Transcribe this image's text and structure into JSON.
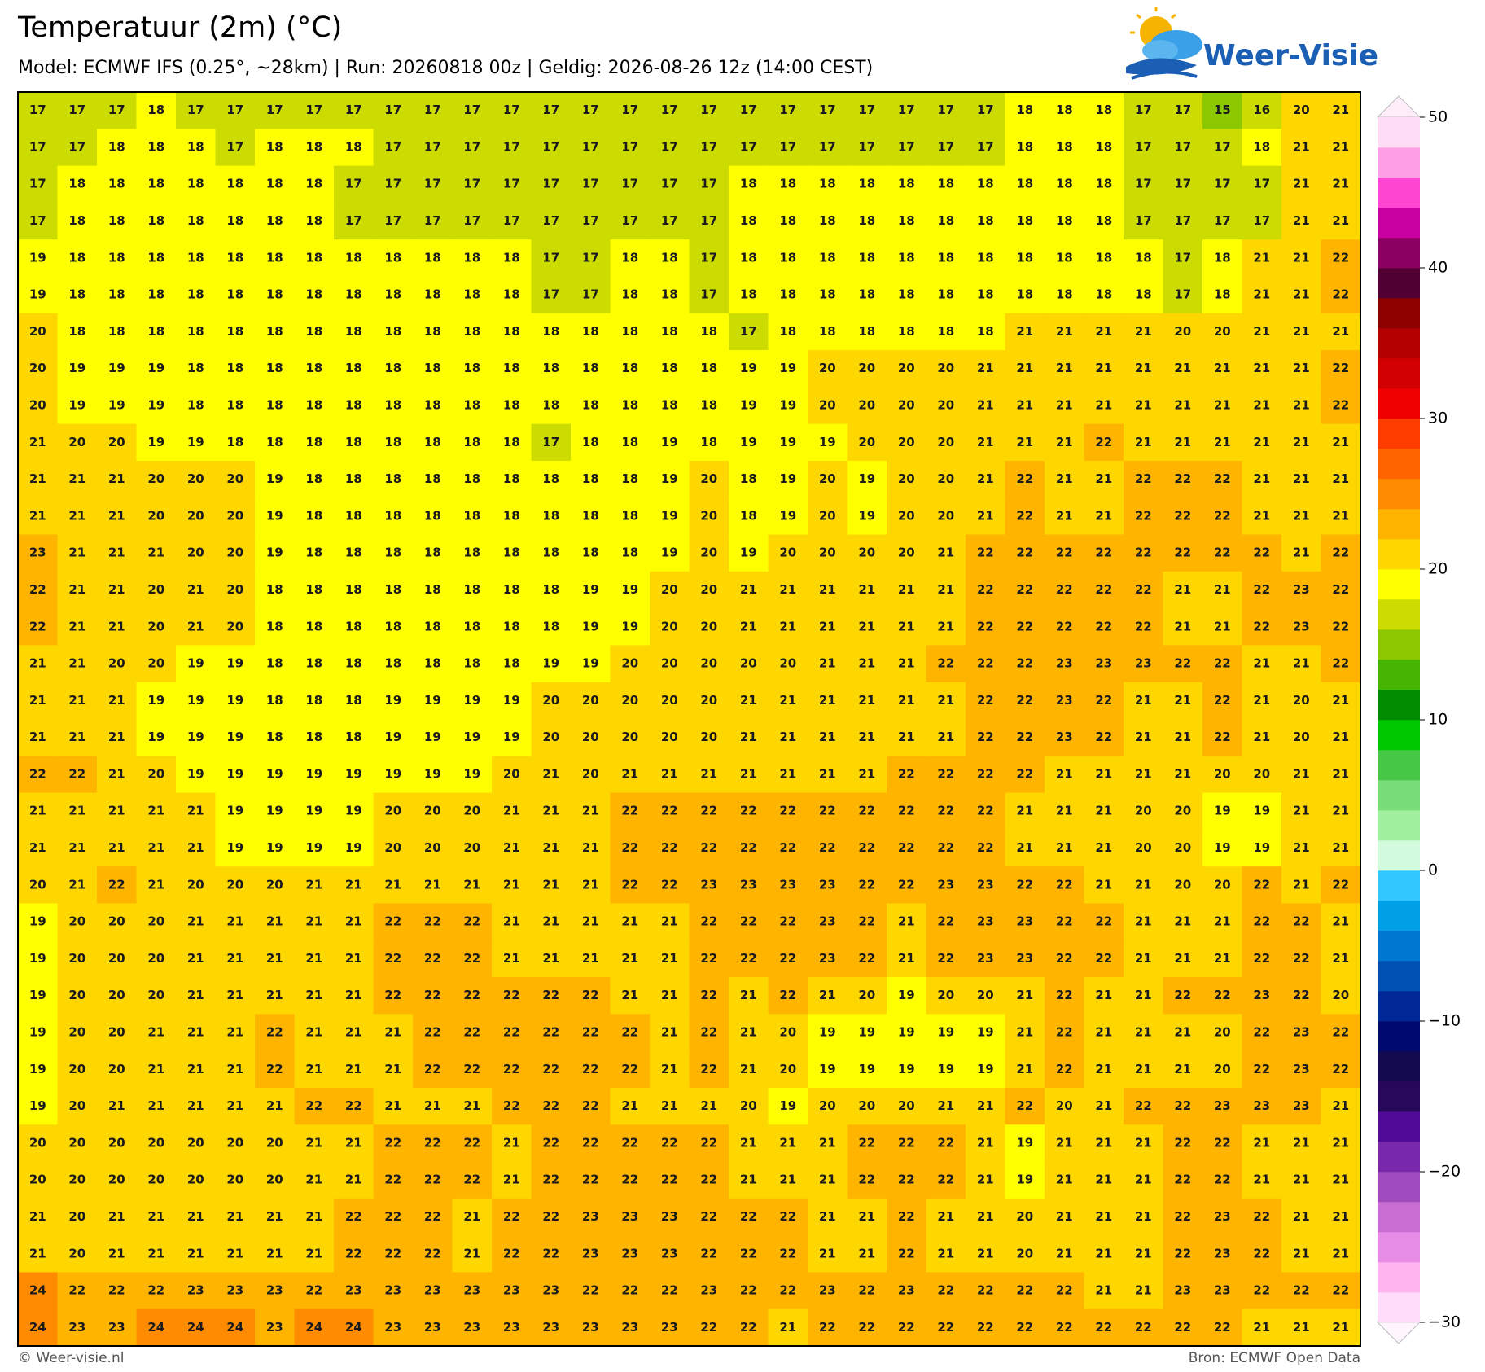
{
  "header": {
    "title": "Temperatuur (2m) (°C)",
    "subtitle": "Model: ECMWF IFS (0.25°, ~28km)  |  Run: 20260818 00z  |  Geldig: 2026-08-26 12z (14:00 CEST)"
  },
  "logo": {
    "text": "Weer-Visie"
  },
  "map": {
    "grid": [
      [
        17,
        17,
        17,
        18,
        17,
        17,
        17,
        17,
        17,
        17,
        17,
        17,
        17,
        17,
        17,
        17,
        17,
        17,
        17,
        17,
        17,
        17,
        17,
        17,
        17,
        18,
        18,
        18,
        17,
        17,
        15,
        16,
        20,
        21
      ],
      [
        17,
        17,
        18,
        18,
        18,
        17,
        18,
        18,
        18,
        17,
        17,
        17,
        17,
        17,
        17,
        17,
        17,
        17,
        17,
        17,
        17,
        17,
        17,
        17,
        17,
        18,
        18,
        18,
        17,
        17,
        17,
        18,
        21,
        21
      ],
      [
        17,
        18,
        18,
        18,
        18,
        18,
        18,
        18,
        17,
        17,
        17,
        17,
        17,
        17,
        17,
        17,
        17,
        17,
        18,
        18,
        18,
        18,
        18,
        18,
        18,
        18,
        18,
        18,
        17,
        17,
        17,
        17,
        21,
        21
      ],
      [
        17,
        18,
        18,
        18,
        18,
        18,
        18,
        18,
        17,
        17,
        17,
        17,
        17,
        17,
        17,
        17,
        17,
        17,
        18,
        18,
        18,
        18,
        18,
        18,
        18,
        18,
        18,
        18,
        17,
        17,
        17,
        17,
        21,
        21
      ],
      [
        19,
        18,
        18,
        18,
        18,
        18,
        18,
        18,
        18,
        18,
        18,
        18,
        18,
        17,
        17,
        18,
        18,
        17,
        18,
        18,
        18,
        18,
        18,
        18,
        18,
        18,
        18,
        18,
        18,
        17,
        18,
        21,
        21,
        22
      ],
      [
        19,
        18,
        18,
        18,
        18,
        18,
        18,
        18,
        18,
        18,
        18,
        18,
        18,
        17,
        17,
        18,
        18,
        17,
        18,
        18,
        18,
        18,
        18,
        18,
        18,
        18,
        18,
        18,
        18,
        17,
        18,
        21,
        21,
        22
      ],
      [
        20,
        18,
        18,
        18,
        18,
        18,
        18,
        18,
        18,
        18,
        18,
        18,
        18,
        18,
        18,
        18,
        18,
        18,
        17,
        18,
        18,
        18,
        18,
        18,
        18,
        21,
        21,
        21,
        21,
        20,
        20,
        21,
        21,
        21
      ],
      [
        20,
        19,
        19,
        19,
        18,
        18,
        18,
        18,
        18,
        18,
        18,
        18,
        18,
        18,
        18,
        18,
        18,
        18,
        19,
        19,
        20,
        20,
        20,
        20,
        21,
        21,
        21,
        21,
        21,
        21,
        21,
        21,
        21,
        22
      ],
      [
        20,
        19,
        19,
        19,
        18,
        18,
        18,
        18,
        18,
        18,
        18,
        18,
        18,
        18,
        18,
        18,
        18,
        18,
        19,
        19,
        20,
        20,
        20,
        20,
        21,
        21,
        21,
        21,
        21,
        21,
        21,
        21,
        21,
        22
      ],
      [
        21,
        20,
        20,
        19,
        19,
        18,
        18,
        18,
        18,
        18,
        18,
        18,
        18,
        17,
        18,
        18,
        19,
        18,
        19,
        19,
        19,
        20,
        20,
        20,
        21,
        21,
        21,
        22,
        21,
        21,
        21,
        21,
        21,
        21
      ],
      [
        21,
        21,
        21,
        20,
        20,
        20,
        19,
        18,
        18,
        18,
        18,
        18,
        18,
        18,
        18,
        18,
        19,
        20,
        18,
        19,
        20,
        19,
        20,
        20,
        21,
        22,
        21,
        21,
        22,
        22,
        22,
        21,
        21,
        21
      ],
      [
        21,
        21,
        21,
        20,
        20,
        20,
        19,
        18,
        18,
        18,
        18,
        18,
        18,
        18,
        18,
        18,
        19,
        20,
        18,
        19,
        20,
        19,
        20,
        20,
        21,
        22,
        21,
        21,
        22,
        22,
        22,
        21,
        21,
        21
      ],
      [
        23,
        21,
        21,
        21,
        20,
        20,
        19,
        18,
        18,
        18,
        18,
        18,
        18,
        18,
        18,
        18,
        19,
        20,
        19,
        20,
        20,
        20,
        20,
        21,
        22,
        22,
        22,
        22,
        22,
        22,
        22,
        22,
        21,
        22
      ],
      [
        22,
        21,
        21,
        20,
        21,
        20,
        18,
        18,
        18,
        18,
        18,
        18,
        18,
        18,
        19,
        19,
        20,
        20,
        21,
        21,
        21,
        21,
        21,
        21,
        22,
        22,
        22,
        22,
        22,
        21,
        21,
        22,
        23,
        22
      ],
      [
        22,
        21,
        21,
        20,
        21,
        20,
        18,
        18,
        18,
        18,
        18,
        18,
        18,
        18,
        19,
        19,
        20,
        20,
        21,
        21,
        21,
        21,
        21,
        21,
        22,
        22,
        22,
        22,
        22,
        21,
        21,
        22,
        23,
        22
      ],
      [
        21,
        21,
        20,
        20,
        19,
        19,
        18,
        18,
        18,
        18,
        18,
        18,
        18,
        19,
        19,
        20,
        20,
        20,
        20,
        20,
        21,
        21,
        21,
        22,
        22,
        22,
        23,
        23,
        23,
        22,
        22,
        21,
        21,
        22
      ],
      [
        21,
        21,
        21,
        19,
        19,
        19,
        18,
        18,
        18,
        19,
        19,
        19,
        19,
        20,
        20,
        20,
        20,
        20,
        21,
        21,
        21,
        21,
        21,
        21,
        22,
        22,
        23,
        22,
        21,
        21,
        22,
        21,
        20,
        21
      ],
      [
        21,
        21,
        21,
        19,
        19,
        19,
        18,
        18,
        18,
        19,
        19,
        19,
        19,
        20,
        20,
        20,
        20,
        20,
        21,
        21,
        21,
        21,
        21,
        21,
        22,
        22,
        23,
        22,
        21,
        21,
        22,
        21,
        20,
        21
      ],
      [
        22,
        22,
        21,
        20,
        19,
        19,
        19,
        19,
        19,
        19,
        19,
        19,
        20,
        21,
        20,
        21,
        21,
        21,
        21,
        21,
        21,
        21,
        22,
        22,
        22,
        22,
        21,
        21,
        21,
        21,
        20,
        20,
        21,
        21
      ],
      [
        21,
        21,
        21,
        21,
        21,
        19,
        19,
        19,
        19,
        20,
        20,
        20,
        21,
        21,
        21,
        22,
        22,
        22,
        22,
        22,
        22,
        22,
        22,
        22,
        22,
        21,
        21,
        21,
        20,
        20,
        19,
        19,
        21,
        21
      ],
      [
        21,
        21,
        21,
        21,
        21,
        19,
        19,
        19,
        19,
        20,
        20,
        20,
        21,
        21,
        21,
        22,
        22,
        22,
        22,
        22,
        22,
        22,
        22,
        22,
        22,
        21,
        21,
        21,
        20,
        20,
        19,
        19,
        21,
        21
      ],
      [
        20,
        21,
        22,
        21,
        20,
        20,
        20,
        21,
        21,
        21,
        21,
        21,
        21,
        21,
        21,
        22,
        22,
        23,
        23,
        23,
        23,
        22,
        22,
        23,
        23,
        22,
        22,
        21,
        21,
        20,
        20,
        22,
        21,
        22
      ],
      [
        19,
        20,
        20,
        20,
        21,
        21,
        21,
        21,
        21,
        22,
        22,
        22,
        21,
        21,
        21,
        21,
        21,
        22,
        22,
        22,
        23,
        22,
        21,
        22,
        23,
        23,
        22,
        22,
        21,
        21,
        21,
        22,
        22,
        21
      ],
      [
        19,
        20,
        20,
        20,
        21,
        21,
        21,
        21,
        21,
        22,
        22,
        22,
        21,
        21,
        21,
        21,
        21,
        22,
        22,
        22,
        23,
        22,
        21,
        22,
        23,
        23,
        22,
        22,
        21,
        21,
        21,
        22,
        22,
        21
      ],
      [
        19,
        20,
        20,
        20,
        21,
        21,
        21,
        21,
        21,
        22,
        22,
        22,
        22,
        22,
        22,
        21,
        21,
        22,
        21,
        22,
        21,
        20,
        19,
        20,
        20,
        21,
        22,
        21,
        21,
        22,
        22,
        23,
        22,
        20
      ],
      [
        19,
        20,
        20,
        21,
        21,
        21,
        22,
        21,
        21,
        21,
        22,
        22,
        22,
        22,
        22,
        22,
        21,
        22,
        21,
        20,
        19,
        19,
        19,
        19,
        19,
        21,
        22,
        21,
        21,
        21,
        20,
        22,
        23,
        22
      ],
      [
        19,
        20,
        20,
        21,
        21,
        21,
        22,
        21,
        21,
        21,
        22,
        22,
        22,
        22,
        22,
        22,
        21,
        22,
        21,
        20,
        19,
        19,
        19,
        19,
        19,
        21,
        22,
        21,
        21,
        21,
        20,
        22,
        23,
        22
      ],
      [
        19,
        20,
        21,
        21,
        21,
        21,
        21,
        22,
        22,
        21,
        21,
        21,
        22,
        22,
        22,
        21,
        21,
        21,
        20,
        19,
        20,
        20,
        20,
        21,
        21,
        22,
        20,
        21,
        22,
        22,
        23,
        23,
        23,
        21
      ],
      [
        20,
        20,
        20,
        20,
        20,
        20,
        20,
        21,
        21,
        22,
        22,
        22,
        21,
        22,
        22,
        22,
        22,
        22,
        21,
        21,
        21,
        22,
        22,
        22,
        21,
        19,
        21,
        21,
        21,
        22,
        22,
        21,
        21,
        21
      ],
      [
        20,
        20,
        20,
        20,
        20,
        20,
        20,
        21,
        21,
        22,
        22,
        22,
        21,
        22,
        22,
        22,
        22,
        22,
        21,
        21,
        21,
        22,
        22,
        22,
        21,
        19,
        21,
        21,
        21,
        22,
        22,
        21,
        21,
        21
      ],
      [
        21,
        20,
        21,
        21,
        21,
        21,
        21,
        21,
        22,
        22,
        22,
        21,
        22,
        22,
        23,
        23,
        23,
        22,
        22,
        22,
        21,
        21,
        22,
        21,
        21,
        20,
        21,
        21,
        21,
        22,
        23,
        22,
        21,
        21
      ],
      [
        21,
        20,
        21,
        21,
        21,
        21,
        21,
        21,
        22,
        22,
        22,
        21,
        22,
        22,
        23,
        23,
        23,
        22,
        22,
        22,
        21,
        21,
        22,
        21,
        21,
        20,
        21,
        21,
        21,
        22,
        23,
        22,
        21,
        21
      ],
      [
        24,
        22,
        22,
        22,
        23,
        23,
        23,
        22,
        23,
        23,
        23,
        23,
        23,
        23,
        22,
        22,
        22,
        23,
        22,
        22,
        23,
        22,
        23,
        22,
        22,
        22,
        22,
        21,
        21,
        23,
        23,
        22,
        22,
        22
      ],
      [
        24,
        23,
        23,
        24,
        24,
        24,
        23,
        24,
        24,
        23,
        23,
        23,
        23,
        23,
        23,
        23,
        23,
        22,
        22,
        21,
        22,
        22,
        22,
        22,
        22,
        22,
        22,
        22,
        22,
        22,
        22,
        21,
        21,
        21
      ]
    ]
  },
  "colorbar": {
    "lim": [
      -30,
      50
    ],
    "ticks": [
      50,
      40,
      30,
      20,
      10,
      0,
      {
        "value": -10,
        "label": "−10"
      },
      {
        "value": -20,
        "label": "−20"
      },
      {
        "value": -30,
        "label": "−30"
      }
    ],
    "colors": [
      "#ffdcfa",
      "#ffb4f0",
      "#e68ce6",
      "#c86ed2",
      "#a04cbe",
      "#7828aa",
      "#500a96",
      "#28085a",
      "#140a50",
      "#000a6e",
      "#002896",
      "#0050b4",
      "#0078d2",
      "#00a0e6",
      "#32c8ff",
      "#d2fadc",
      "#a0f0a0",
      "#78dc78",
      "#46c846",
      "#00c800",
      "#008c00",
      "#46b400",
      "#8cc800",
      "#cddc00",
      "#ffff00",
      "#ffd700",
      "#ffb400",
      "#ff8c00",
      "#ff6400",
      "#ff3c00",
      "#f00000",
      "#d20000",
      "#b40000",
      "#8c0000",
      "#500032",
      "#8c0064",
      "#c800a0",
      "#ff46d2",
      "#ffa0e6",
      "#ffdcf5"
    ]
  },
  "footer": {
    "left": "© Weer-visie.nl",
    "right": "Bron: ECMWF Open Data"
  }
}
